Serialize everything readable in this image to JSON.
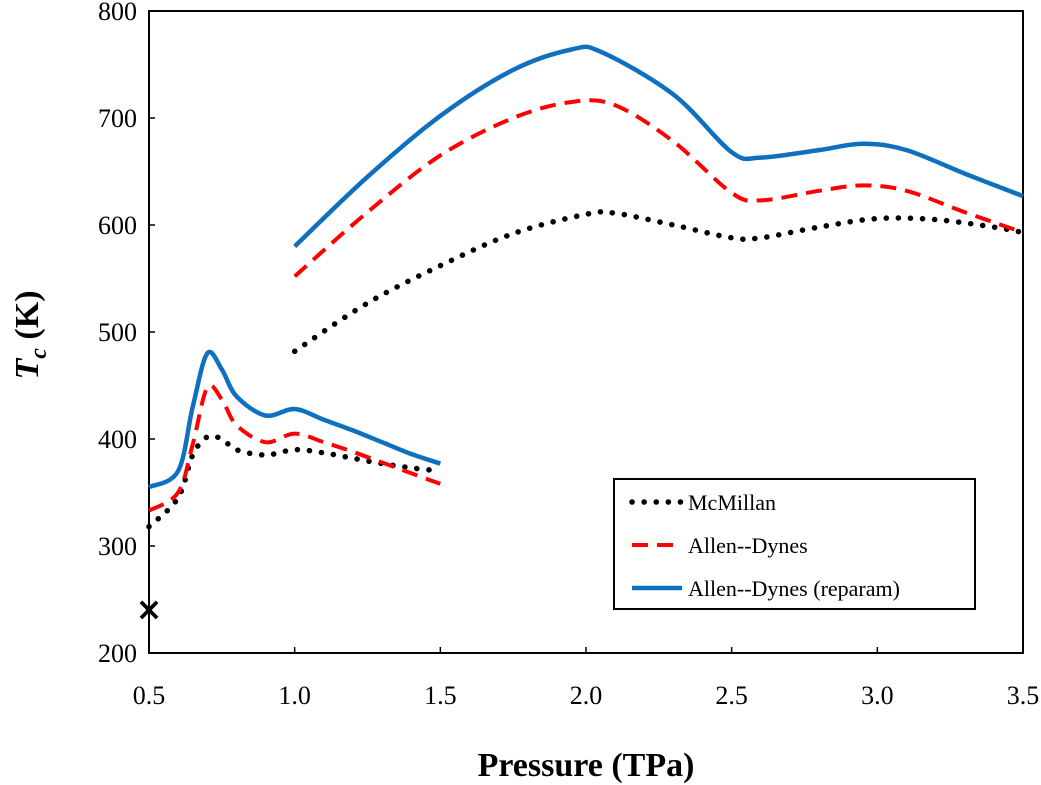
{
  "chart_data": {
    "type": "line",
    "title": "",
    "xlabel": "Pressure (TPa)",
    "ylabel_main": "T",
    "ylabel_sub": "c",
    "ylabel_rest": " (K)",
    "xlim": [
      0.5,
      3.5
    ],
    "ylim": [
      200,
      800
    ],
    "xticks": [
      0.5,
      1.0,
      1.5,
      2.0,
      2.5,
      3.0,
      3.5
    ],
    "xtick_labels": [
      "0.5",
      "1.0",
      "1.5",
      "2.0",
      "2.5",
      "3.0",
      "3.5"
    ],
    "yticks": [
      200,
      300,
      400,
      500,
      600,
      700,
      800
    ],
    "ytick_labels": [
      "200",
      "300",
      "400",
      "500",
      "600",
      "700",
      "800"
    ],
    "grid": false,
    "legend_position": "lower-right",
    "series": [
      {
        "name": "McMillan",
        "color": "#000000",
        "style": "dotted",
        "segments": [
          [
            [
              0.5,
              318
            ],
            [
              0.6,
              345
            ],
            [
              0.65,
              385
            ],
            [
              0.7,
              402
            ],
            [
              0.75,
              400
            ],
            [
              0.8,
              390
            ],
            [
              0.9,
              385
            ],
            [
              1.0,
              390
            ],
            [
              1.1,
              387
            ],
            [
              1.2,
              382
            ],
            [
              1.3,
              377
            ],
            [
              1.4,
              373
            ],
            [
              1.5,
              370
            ]
          ],
          [
            [
              1.0,
              482
            ],
            [
              1.25,
              527
            ],
            [
              1.5,
              562
            ],
            [
              1.75,
              592
            ],
            [
              2.0,
              610
            ],
            [
              2.1,
              611
            ],
            [
              2.3,
              600
            ],
            [
              2.5,
              588
            ],
            [
              2.6,
              588
            ],
            [
              2.8,
              598
            ],
            [
              3.0,
              606
            ],
            [
              3.2,
              605
            ],
            [
              3.4,
              598
            ],
            [
              3.5,
              593
            ]
          ]
        ]
      },
      {
        "name": "Allen--Dynes",
        "color": "#ff0000",
        "style": "dashed",
        "segments": [
          [
            [
              0.5,
              333
            ],
            [
              0.6,
              350
            ],
            [
              0.65,
              395
            ],
            [
              0.7,
              448
            ],
            [
              0.75,
              437
            ],
            [
              0.8,
              413
            ],
            [
              0.9,
              397
            ],
            [
              1.0,
              405
            ],
            [
              1.1,
              397
            ],
            [
              1.2,
              388
            ],
            [
              1.3,
              378
            ],
            [
              1.4,
              368
            ],
            [
              1.5,
              358
            ]
          ],
          [
            [
              1.0,
              552
            ],
            [
              1.25,
              612
            ],
            [
              1.5,
              665
            ],
            [
              1.75,
              700
            ],
            [
              1.95,
              715
            ],
            [
              2.1,
              712
            ],
            [
              2.3,
              678
            ],
            [
              2.5,
              630
            ],
            [
              2.6,
              623
            ],
            [
              2.8,
              632
            ],
            [
              2.95,
              637
            ],
            [
              3.1,
              632
            ],
            [
              3.3,
              612
            ],
            [
              3.5,
              593
            ]
          ]
        ]
      },
      {
        "name": "Allen--Dynes (reparam)",
        "color": "#1070c0",
        "style": "solid",
        "segments": [
          [
            [
              0.5,
              355
            ],
            [
              0.6,
              370
            ],
            [
              0.65,
              430
            ],
            [
              0.7,
              480
            ],
            [
              0.75,
              465
            ],
            [
              0.8,
              440
            ],
            [
              0.9,
              422
            ],
            [
              1.0,
              428
            ],
            [
              1.1,
              418
            ],
            [
              1.2,
              408
            ],
            [
              1.3,
              397
            ],
            [
              1.4,
              386
            ],
            [
              1.5,
              377
            ]
          ],
          [
            [
              1.0,
              580
            ],
            [
              1.25,
              645
            ],
            [
              1.5,
              702
            ],
            [
              1.75,
              745
            ],
            [
              1.95,
              764
            ],
            [
              2.05,
              762
            ],
            [
              2.3,
              722
            ],
            [
              2.5,
              668
            ],
            [
              2.6,
              663
            ],
            [
              2.8,
              670
            ],
            [
              2.95,
              676
            ],
            [
              3.1,
              670
            ],
            [
              3.3,
              648
            ],
            [
              3.5,
              627
            ]
          ]
        ]
      }
    ],
    "markers": [
      {
        "name": "reference-point",
        "symbol": "×",
        "x": 0.5,
        "y": 241
      }
    ]
  }
}
